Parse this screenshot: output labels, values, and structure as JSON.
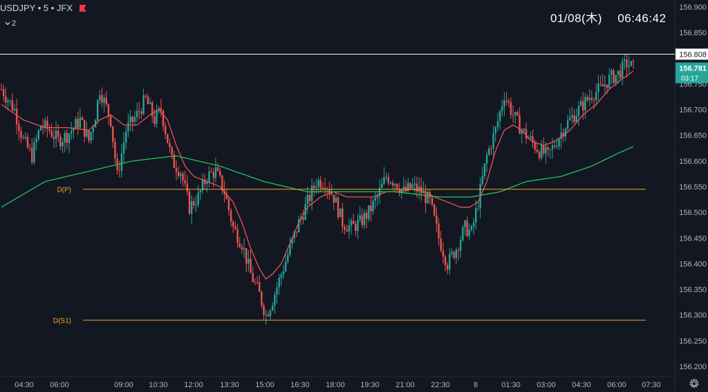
{
  "header": {
    "symbol": "USDJPY",
    "interval": "5",
    "exchange": "JFX",
    "separator": "•",
    "indicator_count": "2",
    "collapse_icon": "chevron-down-icon",
    "flag_icon": "flag-icon"
  },
  "clock": {
    "date": "01/08(木)",
    "time": "06:46:42"
  },
  "settings_icon": "gear-icon",
  "colors": {
    "background": "#131722",
    "up_candle": "#26a69a",
    "down_candle": "#ef5350",
    "ma_fast": "#ef5350",
    "ma_slow": "#22c55e",
    "pivot_line": "#f5a623",
    "resistance_line": "#ffffff",
    "price_badge": "#26a69a"
  },
  "chart_data": {
    "type": "line",
    "y_axis": {
      "min": 156.2,
      "max": 156.9,
      "ticks": [
        "156.900",
        "156.850",
        "156.808",
        "156.781",
        "156.750",
        "156.700",
        "156.650",
        "156.600",
        "156.550",
        "156.500",
        "156.450",
        "156.400",
        "156.350",
        "156.300",
        "156.250",
        "156.200"
      ]
    },
    "x_axis": {
      "ticks": [
        "04:30",
        "06:00",
        "09:00",
        "10:30",
        "12:00",
        "13:30",
        "15:00",
        "16:30",
        "18:00",
        "19:30",
        "21:00",
        "22:30",
        "8",
        "01:30",
        "03:00",
        "04:30",
        "06:00",
        "07:30"
      ]
    },
    "last_price": {
      "value": "156.781",
      "countdown": "03:17"
    },
    "horizontal_level": {
      "value": "156.808"
    },
    "pivot_levels": [
      {
        "label": "D(P)",
        "value": 156.545
      },
      {
        "label": "D(S1)",
        "value": 156.29
      }
    ],
    "candle_close_path": [
      [
        0,
        156.74
      ],
      [
        6,
        156.7
      ],
      [
        10,
        156.64
      ],
      [
        14,
        156.61
      ],
      [
        18,
        156.67
      ],
      [
        22,
        156.66
      ],
      [
        26,
        156.64
      ],
      [
        30,
        156.65
      ],
      [
        36,
        156.68
      ],
      [
        40,
        156.64
      ],
      [
        43,
        156.69
      ],
      [
        45,
        156.74
      ],
      [
        50,
        156.68
      ],
      [
        53,
        156.57
      ],
      [
        57,
        156.66
      ],
      [
        62,
        156.69
      ],
      [
        66,
        156.72
      ],
      [
        70,
        156.68
      ],
      [
        73,
        156.7
      ],
      [
        78,
        156.6
      ],
      [
        82,
        156.58
      ],
      [
        86,
        156.51
      ],
      [
        90,
        156.53
      ],
      [
        94,
        156.57
      ],
      [
        98,
        156.58
      ],
      [
        102,
        156.54
      ],
      [
        106,
        156.47
      ],
      [
        110,
        156.44
      ],
      [
        114,
        156.38
      ],
      [
        118,
        156.34
      ],
      [
        121,
        156.3
      ],
      [
        124,
        156.33
      ],
      [
        128,
        156.38
      ],
      [
        132,
        156.43
      ],
      [
        136,
        156.48
      ],
      [
        140,
        156.52
      ],
      [
        144,
        156.56
      ],
      [
        148,
        156.56
      ],
      [
        152,
        156.53
      ],
      [
        156,
        156.48
      ],
      [
        160,
        156.47
      ],
      [
        164,
        156.48
      ],
      [
        168,
        156.5
      ],
      [
        172,
        156.53
      ],
      [
        176,
        156.57
      ],
      [
        180,
        156.56
      ],
      [
        184,
        156.54
      ],
      [
        188,
        156.55
      ],
      [
        192,
        156.54
      ],
      [
        196,
        156.52
      ],
      [
        200,
        156.45
      ],
      [
        204,
        156.4
      ],
      [
        208,
        156.43
      ],
      [
        212,
        156.47
      ],
      [
        215,
        156.46
      ],
      [
        218,
        156.52
      ],
      [
        222,
        156.61
      ],
      [
        226,
        156.66
      ],
      [
        230,
        156.73
      ],
      [
        234,
        156.69
      ],
      [
        238,
        156.66
      ],
      [
        242,
        156.64
      ],
      [
        246,
        156.62
      ],
      [
        250,
        156.61
      ],
      [
        254,
        156.64
      ],
      [
        258,
        156.67
      ],
      [
        262,
        156.69
      ],
      [
        266,
        156.71
      ],
      [
        270,
        156.73
      ],
      [
        274,
        156.74
      ],
      [
        278,
        156.76
      ],
      [
        282,
        156.77
      ],
      [
        286,
        156.79
      ],
      [
        289,
        156.781
      ]
    ],
    "moving_averages": [
      {
        "values": [
          [
            0,
            156.71
          ],
          [
            10,
            156.68
          ],
          [
            20,
            156.665
          ],
          [
            30,
            156.665
          ],
          [
            40,
            156.66
          ],
          [
            45,
            156.68
          ],
          [
            50,
            156.69
          ],
          [
            56,
            156.67
          ],
          [
            62,
            156.67
          ],
          [
            68,
            156.69
          ],
          [
            72,
            156.7
          ],
          [
            76,
            156.68
          ],
          [
            80,
            156.63
          ],
          [
            84,
            156.59
          ],
          [
            88,
            156.57
          ],
          [
            94,
            156.56
          ],
          [
            100,
            156.55
          ],
          [
            106,
            156.52
          ],
          [
            110,
            156.48
          ],
          [
            114,
            156.43
          ],
          [
            118,
            156.39
          ],
          [
            121,
            156.37
          ],
          [
            124,
            156.38
          ],
          [
            128,
            156.4
          ],
          [
            132,
            156.44
          ],
          [
            136,
            156.48
          ],
          [
            140,
            156.51
          ],
          [
            146,
            156.53
          ],
          [
            152,
            156.54
          ],
          [
            158,
            156.53
          ],
          [
            164,
            156.53
          ],
          [
            170,
            156.53
          ],
          [
            176,
            156.54
          ],
          [
            182,
            156.54
          ],
          [
            188,
            156.545
          ],
          [
            194,
            156.54
          ],
          [
            198,
            156.53
          ],
          [
            204,
            156.52
          ],
          [
            210,
            156.51
          ],
          [
            214,
            156.51
          ],
          [
            218,
            156.52
          ],
          [
            222,
            156.56
          ],
          [
            226,
            156.62
          ],
          [
            230,
            156.66
          ],
          [
            234,
            156.67
          ],
          [
            238,
            156.66
          ],
          [
            242,
            156.64
          ],
          [
            248,
            156.63
          ],
          [
            254,
            156.64
          ],
          [
            260,
            156.66
          ],
          [
            266,
            156.69
          ],
          [
            272,
            156.71
          ],
          [
            278,
            156.74
          ],
          [
            284,
            156.76
          ],
          [
            289,
            156.775
          ]
        ]
      },
      {
        "values": [
          [
            0,
            156.51
          ],
          [
            20,
            156.56
          ],
          [
            40,
            156.58
          ],
          [
            60,
            156.6
          ],
          [
            80,
            156.61
          ],
          [
            100,
            156.59
          ],
          [
            120,
            156.56
          ],
          [
            140,
            156.54
          ],
          [
            160,
            156.54
          ],
          [
            180,
            156.54
          ],
          [
            200,
            156.53
          ],
          [
            215,
            156.53
          ],
          [
            228,
            156.54
          ],
          [
            240,
            156.56
          ],
          [
            256,
            156.57
          ],
          [
            270,
            156.59
          ],
          [
            282,
            156.615
          ],
          [
            289,
            156.628
          ]
        ]
      }
    ]
  }
}
